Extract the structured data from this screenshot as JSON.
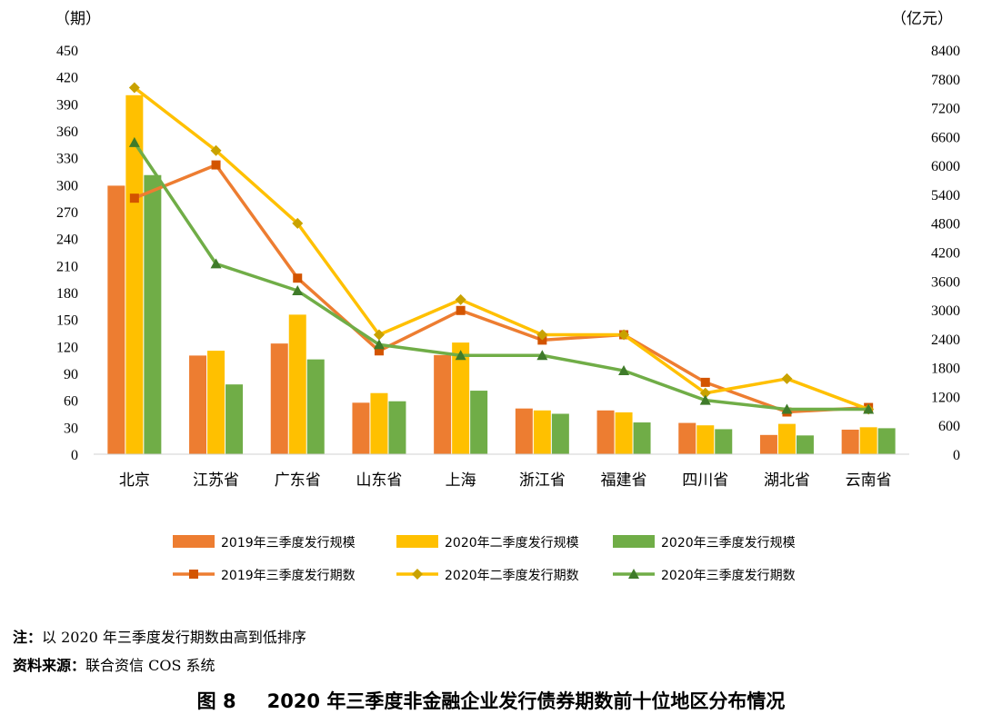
{
  "chart_data": {
    "type": "bar+line",
    "left_axis_unit": "（期）",
    "right_axis_unit": "（亿元）",
    "left_ylim": [
      0,
      450
    ],
    "left_ticks": [
      0,
      30,
      60,
      90,
      120,
      150,
      180,
      210,
      240,
      270,
      300,
      330,
      360,
      390,
      420,
      450
    ],
    "right_ylim": [
      0,
      8400
    ],
    "right_ticks": [
      0,
      600,
      1200,
      1800,
      2400,
      3000,
      3600,
      4200,
      4800,
      5400,
      6000,
      6600,
      7200,
      7800,
      8400
    ],
    "categories": [
      "北京",
      "江苏省",
      "广东省",
      "山东省",
      "上海",
      "浙江省",
      "福建省",
      "四川省",
      "湖北省",
      "云南省"
    ],
    "bar_series": [
      {
        "name": "2019年三季度发行规模",
        "color": "#ED7D31",
        "axis": "right",
        "values": [
          5580,
          2050,
          2300,
          1070,
          2060,
          950,
          910,
          650,
          400,
          510
        ]
      },
      {
        "name": "2020年二季度发行规模",
        "color": "#FFC000",
        "axis": "right",
        "values": [
          7460,
          2150,
          2900,
          1270,
          2320,
          910,
          870,
          600,
          630,
          560
        ]
      },
      {
        "name": "2020年三季度发行规模",
        "color": "#70AD47",
        "axis": "right",
        "values": [
          5800,
          1450,
          1970,
          1100,
          1320,
          840,
          660,
          520,
          390,
          540
        ]
      }
    ],
    "line_series": [
      {
        "name": "2019年三季度发行期数",
        "color": "#ED7D31",
        "marker": "square",
        "axis": "left",
        "values": [
          285,
          322,
          196,
          115,
          160,
          127,
          133,
          80,
          47,
          52
        ]
      },
      {
        "name": "2020年二季度发行期数",
        "color": "#FFC000",
        "marker": "diamond",
        "axis": "left",
        "values": [
          408,
          338,
          257,
          133,
          172,
          133,
          133,
          68,
          84,
          50
        ]
      },
      {
        "name": "2020年三季度发行期数",
        "color": "#70AD47",
        "marker": "triangle",
        "axis": "left",
        "values": [
          347,
          212,
          182,
          122,
          110,
          110,
          93,
          60,
          50,
          50
        ]
      }
    ]
  },
  "notes": {
    "note_label": "注：",
    "note_text": "以 2020 年三季度发行期数由高到低排序",
    "source_label": "资料来源：",
    "source_text": "联合资信 COS 系统"
  },
  "caption": {
    "figure_number": "图 8",
    "title": "2020 年三季度非金融企业发行债券期数前十位地区分布情况"
  }
}
